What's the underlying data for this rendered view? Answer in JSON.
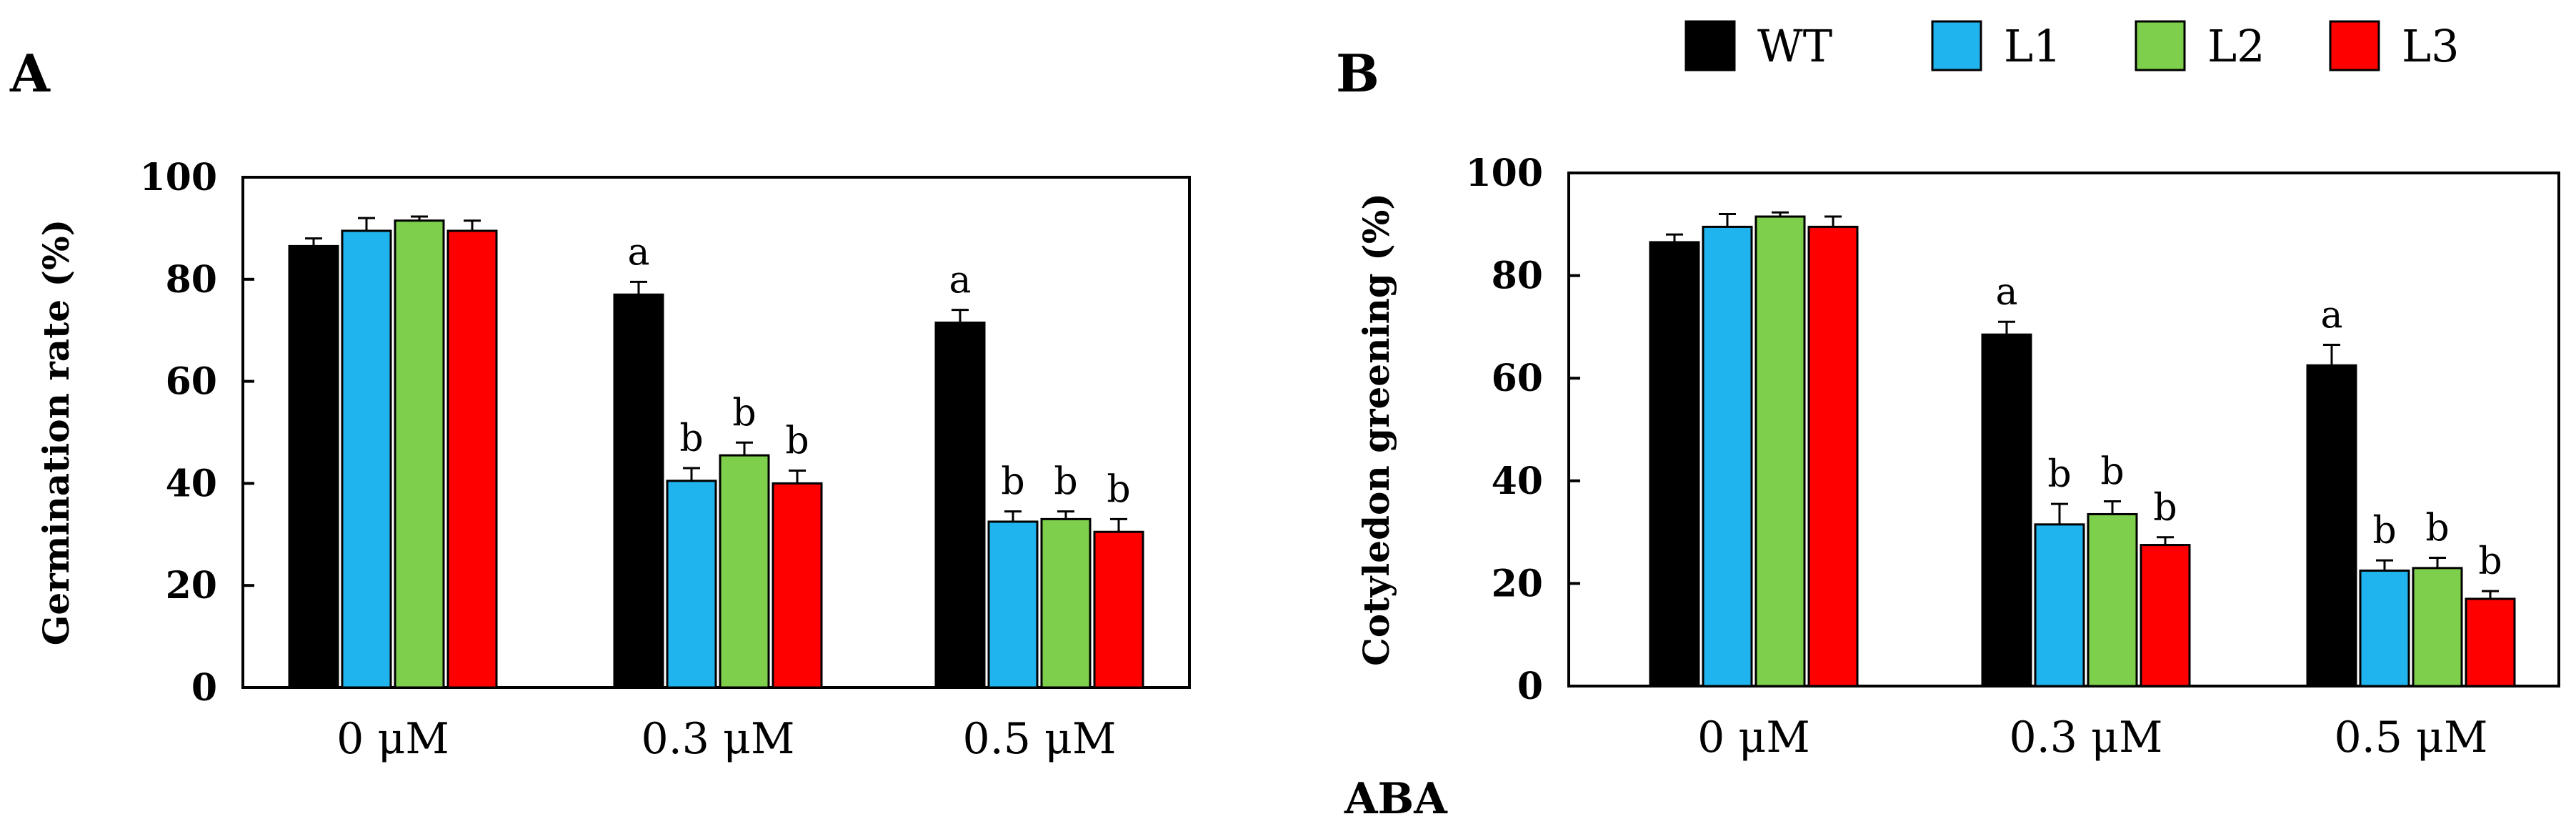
{
  "legend": [
    {
      "name": "WT",
      "color": "#000000"
    },
    {
      "name": "L1",
      "color": "#1fb4ee"
    },
    {
      "name": "L2",
      "color": "#7ed04c"
    },
    {
      "name": "L3",
      "color": "#ff0000"
    }
  ],
  "x_title": "ABA",
  "chart_data": [
    {
      "panel": "A",
      "type": "bar",
      "ylabel": "Germination rate (%)",
      "xlabel": "ABA",
      "ylim": [
        0,
        100
      ],
      "yticks": [
        0,
        20,
        40,
        60,
        80,
        100
      ],
      "categories": [
        "0 μM",
        "0.3 μM",
        "0.5 μM"
      ],
      "series": [
        {
          "name": "WT",
          "color": "#000000",
          "values": [
            86.5,
            77,
            71.5
          ],
          "errors": [
            1.5,
            2.5,
            2.5
          ],
          "labels": [
            "",
            "a",
            "a"
          ]
        },
        {
          "name": "L1",
          "color": "#1fb4ee",
          "values": [
            89.5,
            40.5,
            32.5
          ],
          "errors": [
            2.5,
            2.5,
            2
          ],
          "labels": [
            "",
            "b",
            "b"
          ]
        },
        {
          "name": "L2",
          "color": "#7ed04c",
          "values": [
            91.5,
            45.5,
            33
          ],
          "errors": [
            0.8,
            2.5,
            1.5
          ],
          "labels": [
            "",
            "b",
            "b"
          ]
        },
        {
          "name": "L3",
          "color": "#ff0000",
          "values": [
            89.5,
            40,
            30.5
          ],
          "errors": [
            2,
            2.5,
            2.5
          ],
          "labels": [
            "",
            "b",
            "b"
          ]
        }
      ]
    },
    {
      "panel": "B",
      "type": "bar",
      "ylabel": "Cotyledon greening (%)",
      "xlabel": "ABA",
      "ylim": [
        0,
        100
      ],
      "yticks": [
        0,
        20,
        40,
        60,
        80,
        100
      ],
      "categories": [
        "0 μM",
        "0.3 μM",
        "0.5 μM"
      ],
      "series": [
        {
          "name": "WT",
          "color": "#000000",
          "values": [
            86.5,
            68.5,
            62.5
          ],
          "errors": [
            1.5,
            2.5,
            4
          ],
          "labels": [
            "",
            "a",
            "a"
          ]
        },
        {
          "name": "L1",
          "color": "#1fb4ee",
          "values": [
            89.5,
            31.5,
            22.5
          ],
          "errors": [
            2.5,
            4,
            2
          ],
          "labels": [
            "",
            "b",
            "b"
          ]
        },
        {
          "name": "L2",
          "color": "#7ed04c",
          "values": [
            91.5,
            33.5,
            23
          ],
          "errors": [
            0.8,
            2.5,
            2
          ],
          "labels": [
            "",
            "b",
            "b"
          ]
        },
        {
          "name": "L3",
          "color": "#ff0000",
          "values": [
            89.5,
            27.5,
            17
          ],
          "errors": [
            2,
            1.5,
            1.5
          ],
          "labels": [
            "",
            "b",
            "b"
          ]
        }
      ]
    }
  ]
}
